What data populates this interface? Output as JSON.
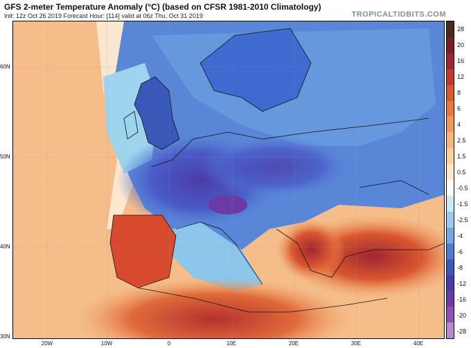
{
  "header": {
    "title": "GFS 2-meter Temperature Anomaly (°C) (based on CFSR 1981-2010 Climatology)",
    "subtitle": "Init: 12z Oct 26 2019   Forecast Hour: [114]   valid at 06z Thu, Oct 31 2019",
    "credit": "TROPICALTIDBITS.COM"
  },
  "latitude_labels": [
    "60N",
    "50N",
    "40N",
    "30N"
  ],
  "longitude_labels": [
    "20W",
    "10W",
    "0",
    "10E",
    "20E",
    "30E",
    "40E"
  ],
  "colorbar": {
    "ticks": [
      "28",
      "20",
      "16",
      "12",
      "8",
      "6",
      "4",
      "2.5",
      "1.5",
      "0.5",
      "-0.5",
      "-1.5",
      "-2.5",
      "-4",
      "-6",
      "-8",
      "-12",
      "-16",
      "-20",
      "-28"
    ],
    "colors": [
      "#4a2a1a",
      "#7a1f2a",
      "#a02532",
      "#c13a2e",
      "#d9572f",
      "#e8793f",
      "#f0995a",
      "#f6b77c",
      "#fad19f",
      "#fde7c8",
      "#ffffff",
      "#cde7f5",
      "#9ccbee",
      "#6fa8e2",
      "#4a7fd0",
      "#3a58b8",
      "#4b3ca8",
      "#6a3aa6",
      "#8e4fb8",
      "#b58ad0"
    ]
  },
  "regions": {
    "cold_anomaly_center": "#4b3ca8",
    "cold_anomaly": "#3f6ad0",
    "warm_anomaly": "#d84a2e",
    "ocean_mild_warm": "#f5b27a",
    "neutral": "#ffffff"
  }
}
